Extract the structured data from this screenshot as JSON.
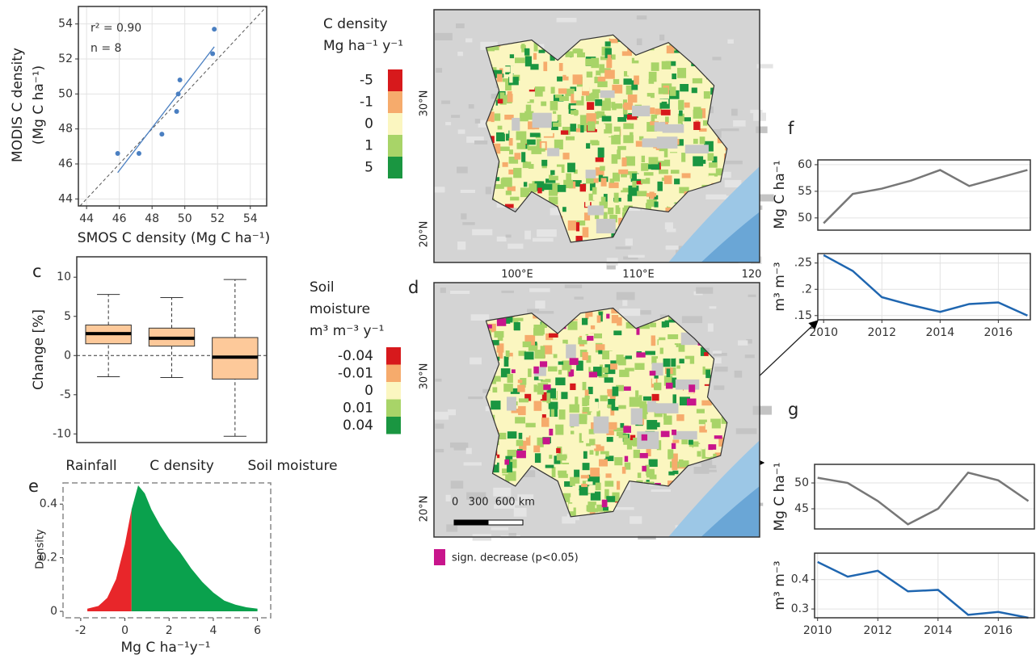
{
  "chart_data": [
    {
      "type": "scatter",
      "xlabel": "SMOS C density (Mg C ha⁻¹)",
      "ylabel": [
        "MODIS C density",
        "(Mg C ha⁻¹)"
      ],
      "annotations": [
        "r² = 0.90",
        "n = 8"
      ],
      "x": [
        45.9,
        47.2,
        48.6,
        49.5,
        49.6,
        49.7,
        51.7,
        51.8
      ],
      "values": [
        46.6,
        46.6,
        47.7,
        49.0,
        50.0,
        50.8,
        52.3,
        53.7
      ],
      "color": "#4a7fc1",
      "xlim": [
        43.5,
        55
      ],
      "ylim": [
        43.6,
        55
      ],
      "xticks": [
        44,
        46,
        48,
        50,
        52,
        54
      ],
      "yticks": [
        44,
        46,
        48,
        50,
        52,
        54
      ],
      "grid": true
    },
    {
      "type": "box",
      "label": "c",
      "ylabel": "Change [%]",
      "categories": [
        "Rainfall",
        "C density",
        "Soil moisture"
      ],
      "stats": [
        [
          -2.7,
          1.5,
          2.8,
          3.9,
          7.8
        ],
        [
          -2.8,
          1.2,
          2.2,
          3.5,
          7.4
        ],
        [
          -10.3,
          -3.0,
          -0.2,
          2.3,
          9.7
        ]
      ],
      "color": "#fdc99a",
      "reference_line": 0,
      "ylim": [
        -11.1,
        12.6
      ],
      "yticks": [
        -10,
        -5,
        0,
        5,
        10
      ]
    },
    {
      "type": "area",
      "label": "e",
      "xlabel": "Mg C ha⁻¹y⁻¹",
      "ylabel": "Density",
      "series": [
        {
          "color": "#e8262a",
          "x": [
            -1.7,
            -1.2,
            -0.8,
            -0.4,
            0,
            0.3
          ],
          "values": [
            0.01,
            0.02,
            0.05,
            0.12,
            0.25,
            0.38
          ]
        },
        {
          "color": "#0aa14d",
          "x": [
            0.3,
            0.6,
            0.9,
            1.2,
            1.6,
            2.0,
            2.5,
            3.0,
            3.5,
            4.0,
            4.5,
            5.0,
            5.5,
            6.0
          ],
          "values": [
            0.38,
            0.47,
            0.44,
            0.38,
            0.32,
            0.27,
            0.22,
            0.16,
            0.11,
            0.07,
            0.04,
            0.025,
            0.015,
            0.01
          ]
        }
      ],
      "xlim": [
        -2.8,
        6.6
      ],
      "ylim": [
        -0.024,
        0.479
      ],
      "xticks": [
        -2,
        0,
        2,
        4,
        6
      ],
      "yticks": [
        0,
        0.2,
        0.4
      ]
    },
    {
      "type": "map",
      "legend_title": [
        "C density",
        "Mg ha⁻¹ y⁻¹"
      ],
      "legend": [
        {
          "value": -5,
          "color": "#d7191c"
        },
        {
          "value": -1,
          "color": "#f6ab6c"
        },
        {
          "value": 0,
          "color": "#fbf6c0"
        },
        {
          "value": 1,
          "color": "#a8d468"
        },
        {
          "value": 5,
          "color": "#1a9641"
        }
      ],
      "lat_labels": [
        "30°N",
        "20°N"
      ],
      "lon_labels": [
        "100°E",
        "110°E",
        "120"
      ]
    },
    {
      "type": "map",
      "label": "d",
      "legend_title": [
        "Soil",
        "moisture",
        "m³ m⁻³ y⁻¹"
      ],
      "legend": [
        {
          "value": -0.04,
          "color": "#d7191c"
        },
        {
          "value": -0.01,
          "color": "#f6ab6c"
        },
        {
          "value": 0,
          "color": "#fbf6c0"
        },
        {
          "value": 0.01,
          "color": "#a8d468"
        },
        {
          "value": 0.04,
          "color": "#1a9641"
        }
      ],
      "lat_labels": [
        "30°N",
        "20°N"
      ],
      "scale_label": "0   300  600 km",
      "highlight": {
        "label": "sign. decrease (p<0.05)",
        "color": "#c8158c"
      }
    },
    {
      "type": "line",
      "label": "f",
      "ylabel": "Mg C ha⁻¹",
      "color": "#777777",
      "x": [
        2010,
        2011,
        2012,
        2013,
        2014,
        2015,
        2016,
        2017
      ],
      "values": [
        49,
        54.5,
        55.5,
        57,
        59,
        56,
        57.5,
        59
      ],
      "xlim": [
        2009.8,
        2017.1
      ],
      "ylim": [
        47.7,
        60.9
      ],
      "yticks": [
        50,
        55,
        60
      ],
      "grid": true
    },
    {
      "type": "line",
      "ylabel": "m³ m⁻³",
      "color": "#1f66b0",
      "x": [
        2010,
        2011,
        2012,
        2013,
        2014,
        2015,
        2016,
        2017
      ],
      "values": [
        0.265,
        0.235,
        0.185,
        0.17,
        0.157,
        0.172,
        0.175,
        0.15
      ],
      "xlim": [
        2009.8,
        2017.1
      ],
      "ylim": [
        0.142,
        0.268
      ],
      "xticks": [
        2010,
        2012,
        2014,
        2016
      ],
      "yticks": [
        {
          "value": 0.15,
          "label": ".15"
        },
        {
          "value": 0.2,
          "label": ".2"
        },
        {
          "value": 0.25,
          "label": ".25"
        }
      ],
      "grid": true
    },
    {
      "type": "line",
      "label": "g",
      "ylabel": "Mg C ha⁻¹",
      "color": "#777777",
      "x": [
        2010,
        2011,
        2012,
        2013,
        2014,
        2015,
        2016,
        2017
      ],
      "values": [
        51,
        50,
        46.5,
        42,
        45,
        52,
        50.5,
        46.5
      ],
      "xlim": [
        2009.9,
        2017.2
      ],
      "ylim": [
        41.1,
        53.6
      ],
      "yticks": [
        45,
        50
      ],
      "grid": true
    },
    {
      "type": "line",
      "ylabel": "m³ m⁻³",
      "color": "#1f66b0",
      "x": [
        2010,
        2011,
        2012,
        2013,
        2014,
        2015,
        2016,
        2017
      ],
      "values": [
        0.46,
        0.41,
        0.43,
        0.36,
        0.365,
        0.28,
        0.29,
        0.27
      ],
      "xlim": [
        2009.9,
        2017.2
      ],
      "ylim": [
        0.27,
        0.49
      ],
      "xticks": [
        2010,
        2012,
        2014,
        2016
      ],
      "yticks": [
        0.3,
        0.4
      ],
      "grid": true
    }
  ]
}
